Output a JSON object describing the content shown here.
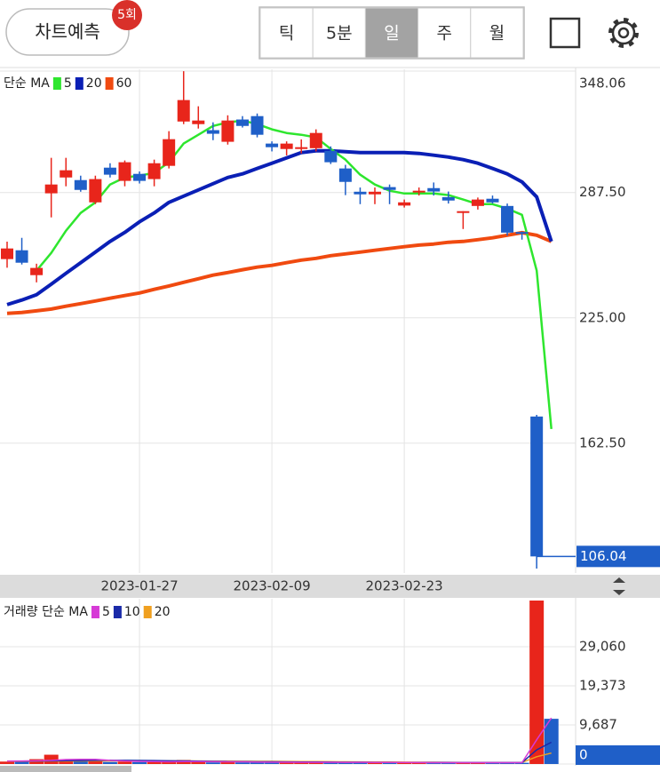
{
  "toolbar": {
    "predict_button": "차트예측",
    "badge": "5회",
    "tabs": [
      "틱",
      "5분",
      "일",
      "주",
      "월"
    ],
    "selected_tab": 2
  },
  "chart_data": [
    {
      "type": "candlestick",
      "legend_title": "단순 MA",
      "categories": [
        null,
        null,
        null,
        null,
        null,
        null,
        null,
        null,
        null,
        "2023-01-27",
        null,
        null,
        null,
        null,
        null,
        null,
        null,
        null,
        "2023-02-09",
        null,
        null,
        null,
        null,
        null,
        null,
        null,
        null,
        "2023-02-23",
        null,
        null,
        null,
        null,
        null,
        null,
        null,
        null,
        null,
        null
      ],
      "open": [
        254.3,
        258.7,
        246.3,
        287.1,
        295,
        293.7,
        282.6,
        299.9,
        293.3,
        296.8,
        294.2,
        300.8,
        322.9,
        321.6,
        318.6,
        312.8,
        323.9,
        325.6,
        311.9,
        309.2,
        309.5,
        309.6,
        308.3,
        299.5,
        287.9,
        286.6,
        290.2,
        281,
        288,
        289.7,
        285.2,
        277.6,
        280.8,
        284.4,
        280.8,
        267.8,
        175.8,
        null
      ],
      "high": [
        263,
        264.9,
        252,
        304.8,
        304.8,
        295.9,
        295.9,
        302.1,
        303.5,
        298,
        303.9,
        318.1,
        348,
        330.5,
        322.5,
        326,
        325.6,
        326.9,
        313,
        313,
        314,
        319,
        310.5,
        301.3,
        290,
        290,
        291.5,
        284,
        290,
        292.5,
        288,
        278.2,
        285,
        286,
        282,
        268,
        176.6,
        null
      ],
      "low": [
        250,
        251.6,
        242.7,
        275.1,
        290.6,
        287.9,
        281.7,
        295,
        290.6,
        292,
        290.6,
        299.5,
        321.6,
        319.4,
        313.6,
        311.4,
        319.9,
        315,
        308,
        306,
        307,
        308,
        301.7,
        286.2,
        281.7,
        281.7,
        281.7,
        280,
        286,
        286,
        282,
        269.3,
        279,
        282,
        266,
        264,
        100,
        null
      ],
      "close": [
        259.6,
        252.5,
        249.9,
        291.5,
        298.6,
        288.8,
        294.2,
        296.4,
        302.6,
        293.3,
        302.1,
        314.1,
        333.6,
        323.4,
        316.8,
        323.4,
        320.7,
        316.3,
        310.1,
        311.9,
        310.1,
        317.2,
        302.6,
        292.8,
        286.6,
        287.9,
        288.8,
        282.6,
        288.4,
        288,
        283.5,
        278.2,
        284,
        282.6,
        267.5,
        267,
        106.04,
        null
      ],
      "up_color": "#e8251b",
      "down_color": "#1f5fc8",
      "series": [
        {
          "name": "5",
          "color": "#2ee62e",
          "values": [
            null,
            null,
            248.5,
            257.4,
            268.4,
            277.3,
            282.6,
            291.5,
            295,
            295.9,
            297.3,
            302.6,
            311.9,
            316.3,
            320.7,
            322.5,
            323.4,
            321.6,
            319,
            317.2,
            316.3,
            315,
            309.2,
            303.9,
            296.4,
            291.5,
            288.4,
            287,
            287,
            287,
            286.2,
            284,
            281.7,
            281.7,
            279.5,
            276.4,
            248.5,
            169.6
          ]
        },
        {
          "name": "20",
          "color": "#0a1fb5",
          "values": [
            231.6,
            233.9,
            236.5,
            241.8,
            247.2,
            252.5,
            257.8,
            263.1,
            267.6,
            272.9,
            277.3,
            282.6,
            285.7,
            288.8,
            291.9,
            295,
            296.8,
            299.5,
            302.1,
            304.8,
            307.4,
            308.3,
            308.3,
            307.9,
            307.4,
            307.4,
            307.4,
            307.4,
            307,
            306.1,
            305.2,
            303.9,
            302.1,
            299.5,
            296.8,
            292.8,
            285.3,
            263.1
          ]
        },
        {
          "name": "60",
          "color": "#f04a10",
          "values": [
            227.2,
            227.7,
            228.5,
            229.4,
            230.8,
            232.1,
            233.4,
            234.8,
            236.1,
            237.4,
            239.2,
            240.9,
            242.7,
            244.5,
            246.3,
            247.6,
            249,
            250.3,
            251.2,
            252.5,
            253.8,
            254.7,
            256,
            256.9,
            257.8,
            258.7,
            259.6,
            260.5,
            261.3,
            261.8,
            262.7,
            263.1,
            264,
            264.9,
            266.2,
            267.5,
            266.2,
            263.1
          ]
        }
      ],
      "ylim": [
        99.1,
        348.06
      ],
      "yticks": [
        {
          "value": 162.5,
          "label": "162.50"
        },
        {
          "value": 225,
          "label": "225.00"
        },
        {
          "value": 287.5,
          "label": "287.50"
        },
        348.06
      ],
      "current_price": 106.04,
      "grid": true
    },
    {
      "type": "bar",
      "legend_title": "거래량 단순 MA",
      "values": [
        600,
        800,
        1200,
        2300,
        900,
        700,
        700,
        500,
        600,
        500,
        500,
        500,
        1000,
        500,
        400,
        500,
        400,
        500,
        400,
        400,
        400,
        500,
        400,
        500,
        400,
        400,
        400,
        300,
        300,
        300,
        300,
        400,
        300,
        300,
        400,
        300,
        40500,
        11200
      ],
      "colors": [
        "#e8251b",
        "#1f5fc8",
        "#e8251b",
        "#e8251b",
        "#e8251b",
        "#1f5fc8",
        "#e8251b",
        "#1f5fc8",
        "#e8251b",
        "#1f5fc8",
        "#e8251b",
        "#e8251b",
        "#e8251b",
        "#e8251b",
        "#1f5fc8",
        "#e8251b",
        "#1f5fc8",
        "#1f5fc8",
        "#1f5fc8",
        "#e8251b",
        "#e8251b",
        "#e8251b",
        "#1f5fc8",
        "#1f5fc8",
        "#1f5fc8",
        "#e8251b",
        "#1f5fc8",
        "#e8251b",
        "#e8251b",
        "#1f5fc8",
        "#1f5fc8",
        "#e8251b",
        "#e8251b",
        "#1f5fc8",
        "#1f5fc8",
        "#1f5fc8",
        "#e8251b",
        "#1f5fc8"
      ],
      "series": [
        {
          "name": "5",
          "color": "#d63ad6",
          "values": [
            700,
            750,
            800,
            900,
            1100,
            1150,
            1150,
            900,
            750,
            650,
            600,
            560,
            620,
            620,
            580,
            560,
            560,
            460,
            440,
            440,
            420,
            420,
            420,
            400,
            420,
            400,
            400,
            380,
            360,
            340,
            330,
            330,
            320,
            320,
            340,
            340,
            6000,
            11400
          ]
        },
        {
          "name": "10",
          "color": "#1a2aa8",
          "values": [
            700,
            720,
            740,
            780,
            820,
            860,
            900,
            920,
            900,
            880,
            860,
            800,
            760,
            700,
            660,
            620,
            600,
            560,
            540,
            520,
            500,
            480,
            460,
            440,
            430,
            420,
            410,
            400,
            390,
            380,
            370,
            360,
            350,
            350,
            350,
            350,
            3500,
            5400
          ]
        },
        {
          "name": "20",
          "color": "#f0a020",
          "values": [
            650,
            660,
            680,
            700,
            720,
            740,
            760,
            770,
            780,
            780,
            780,
            770,
            760,
            750,
            730,
            710,
            690,
            670,
            650,
            630,
            610,
            590,
            570,
            550,
            530,
            510,
            490,
            470,
            450,
            430,
            410,
            400,
            390,
            380,
            380,
            380,
            1800,
            2700
          ]
        }
      ],
      "ylim": [
        0,
        40500
      ],
      "yticks": [
        0,
        {
          "value": 9687,
          "label": "9,687"
        },
        {
          "value": 19373,
          "label": "19,373"
        },
        {
          "value": 29060,
          "label": "29,060"
        }
      ],
      "grid": true
    }
  ]
}
